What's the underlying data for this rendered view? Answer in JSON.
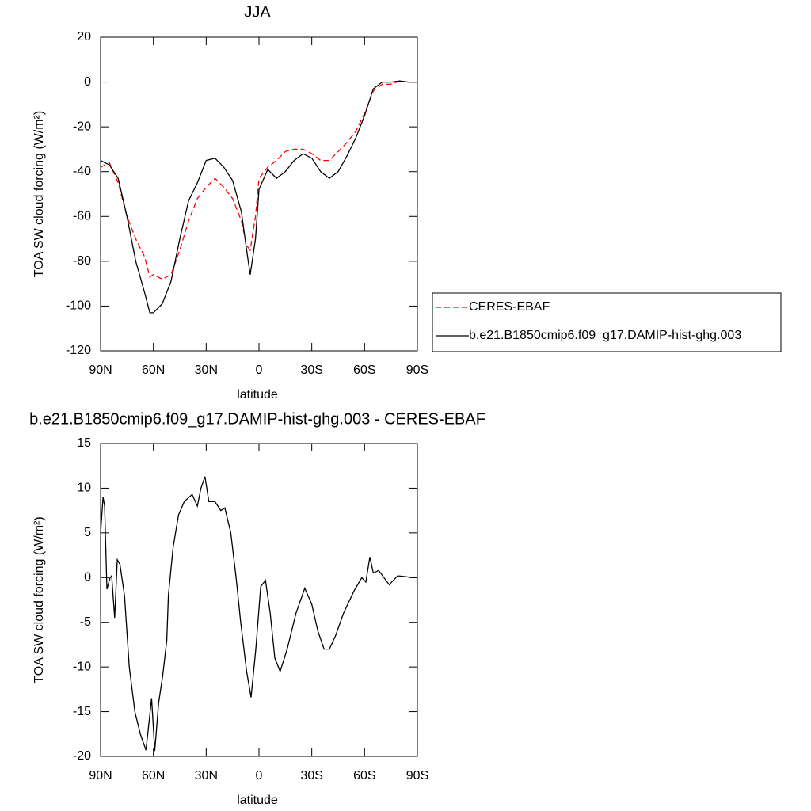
{
  "chart_data": [
    {
      "type": "line",
      "title": "JJA",
      "xlabel": "latitude",
      "ylabel": "TOA SW cloud forcing (W/m²)",
      "x": [
        90,
        85,
        80,
        75,
        70,
        65,
        62,
        60,
        55,
        50,
        45,
        40,
        35,
        30,
        25,
        20,
        15,
        10,
        7,
        5,
        2,
        0,
        -5,
        -10,
        -15,
        -20,
        -25,
        -30,
        -35,
        -40,
        -45,
        -50,
        -55,
        -60,
        -65,
        -70,
        -75,
        -80,
        -85,
        -90
      ],
      "series": [
        {
          "name": "CERES-EBAF",
          "color": "#ff0000",
          "dash": "dashed",
          "values": [
            -38,
            -36,
            -45,
            -60,
            -70,
            -78,
            -87,
            -86,
            -88,
            -86,
            -75,
            -62,
            -52,
            -47,
            -43,
            -47,
            -52,
            -62,
            -73,
            -75,
            -60,
            -43,
            -38,
            -35,
            -31,
            -30,
            -30,
            -32,
            -35,
            -35,
            -31,
            -27,
            -22,
            -14,
            -4,
            -1,
            -1,
            0.5,
            0,
            0
          ]
        },
        {
          "name": "b.e21.B1850cmip6.f09_g17.DAMIP-hist-ghg.003",
          "color": "#000000",
          "dash": "solid",
          "values": [
            -35,
            -37,
            -43,
            -60,
            -80,
            -94,
            -103,
            -103,
            -99,
            -89,
            -70,
            -53,
            -45,
            -35,
            -34,
            -38,
            -44,
            -58,
            -75,
            -86,
            -70,
            -48,
            -39,
            -43,
            -40,
            -35,
            -32,
            -34,
            -40,
            -43,
            -40,
            -33,
            -25,
            -15,
            -3,
            0,
            0,
            0.5,
            0,
            0
          ]
        }
      ],
      "xlim": [
        90,
        -90
      ],
      "xticks": [
        {
          "value": 90,
          "label": "90N"
        },
        {
          "value": 60,
          "label": "60N"
        },
        {
          "value": 30,
          "label": "30N"
        },
        0,
        {
          "value": -30,
          "label": "30S"
        },
        {
          "value": -60,
          "label": "60S"
        },
        {
          "value": -90,
          "label": "90S"
        }
      ],
      "ylim": [
        -120,
        20
      ],
      "yticks": [
        -120,
        -100,
        -80,
        -60,
        -40,
        -20,
        0,
        20
      ],
      "legend": "outside-right"
    },
    {
      "type": "line",
      "title": "b.e21.B1850cmip6.f09_g17.DAMIP-hist-ghg.003 - CERES-EBAF",
      "xlabel": "latitude",
      "ylabel": "TOA SW cloud forcing (W/m²)",
      "x": [
        90,
        88.6,
        87.7,
        86.4,
        84.6,
        83.7,
        82,
        80.5,
        79,
        76.4,
        73.7,
        70.5,
        67.4,
        64.2,
        62.9,
        61,
        59.2,
        57,
        54.7,
        52.4,
        51.5,
        48.8,
        45.7,
        42.5,
        38,
        35,
        33,
        30.7,
        28.5,
        25,
        21.7,
        19.4,
        16,
        13,
        10.4,
        7,
        4.5,
        1.8,
        -1,
        -3.7,
        -6.4,
        -9,
        -12,
        -16,
        -21,
        -26,
        -30,
        -33.5,
        -37,
        -40,
        -43.5,
        -48,
        -54,
        -58.4,
        -60.7,
        -63,
        -65,
        -68,
        -74,
        -78.8,
        -87.8,
        -90
      ],
      "series": [
        {
          "color": "#000000",
          "dash": "solid",
          "values": [
            5,
            9,
            8,
            -1.3,
            0,
            0.2,
            -4.5,
            2,
            1.5,
            -2,
            -10,
            -15,
            -17.5,
            -19.3,
            -17,
            -13.5,
            -19.4,
            -14,
            -11,
            -7,
            -2,
            3.4,
            7,
            8.5,
            9.3,
            8,
            10,
            11.3,
            8.5,
            8.5,
            7.5,
            7.8,
            5,
            0,
            -5,
            -10.5,
            -13.4,
            -8,
            -1,
            -0.3,
            -4,
            -9,
            -10.5,
            -8,
            -4,
            -1.2,
            -3,
            -6,
            -8,
            -8,
            -6.5,
            -4,
            -1.5,
            0,
            -0.5,
            2.3,
            0.5,
            0.8,
            -0.8,
            0.2,
            0,
            0
          ]
        }
      ],
      "xlim": [
        90,
        -90
      ],
      "xticks": [
        {
          "value": 90,
          "label": "90N"
        },
        {
          "value": 60,
          "label": "60N"
        },
        {
          "value": 30,
          "label": "30N"
        },
        0,
        {
          "value": -30,
          "label": "30S"
        },
        {
          "value": -60,
          "label": "60S"
        },
        {
          "value": -90,
          "label": "90S"
        }
      ],
      "ylim": [
        -20,
        15
      ],
      "yticks": [
        -20,
        -15,
        -10,
        -5,
        0,
        5,
        10,
        15
      ]
    }
  ]
}
